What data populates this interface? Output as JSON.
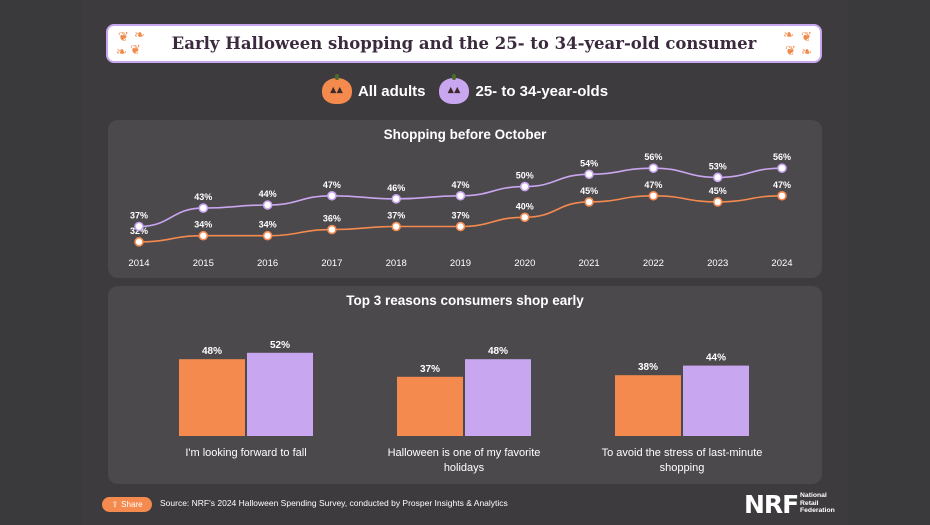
{
  "title": "Early Halloween shopping and the 25- to 34-year-old consumer",
  "legend": [
    {
      "label": "All adults",
      "color": "#f58a4f",
      "icon": "orange-pumpkin-icon"
    },
    {
      "label": "25- to 34-year-olds",
      "color": "#c9a6f0",
      "icon": "purple-pumpkin-icon"
    }
  ],
  "chart_data": [
    {
      "type": "line",
      "title": "Shopping before October",
      "x": [
        "2014",
        "2015",
        "2016",
        "2017",
        "2018",
        "2019",
        "2020",
        "2021",
        "2022",
        "2023",
        "2024"
      ],
      "series": [
        {
          "name": "All adults",
          "color": "#f58a4f",
          "values": [
            32,
            34,
            34,
            36,
            37,
            37,
            40,
            45,
            47,
            45,
            47
          ]
        },
        {
          "name": "25- to 34-year-olds",
          "color": "#c9a6f0",
          "values": [
            37,
            43,
            44,
            47,
            46,
            47,
            50,
            54,
            56,
            53,
            56
          ]
        }
      ],
      "value_suffix": "%",
      "ylim": [
        30,
        58
      ]
    },
    {
      "type": "bar",
      "title": "Top 3 reasons consumers shop early",
      "categories": [
        "I'm looking forward to fall",
        "Halloween is one of my favorite holidays",
        "To avoid the stress of last-minute shopping"
      ],
      "category_lines": [
        [
          "I'm looking forward to fall"
        ],
        [
          "Halloween is one of my favorite",
          "holidays"
        ],
        [
          "To avoid the stress of last-minute",
          "shopping"
        ]
      ],
      "series": [
        {
          "name": "All adults",
          "color": "#f58a4f",
          "values": [
            48,
            37,
            38
          ]
        },
        {
          "name": "25- to 34-year-olds",
          "color": "#c9a6f0",
          "values": [
            52,
            48,
            44
          ]
        }
      ],
      "value_suffix": "%",
      "ylim": [
        0,
        100
      ]
    }
  ],
  "footer": {
    "share_label": "Share",
    "source": "Source: NRF's 2024 Halloween Spending Survey, conducted by Prosper Insights & Analytics",
    "logo_text": "NRF",
    "logo_subtitle": [
      "National",
      "Retail",
      "Federation"
    ]
  }
}
